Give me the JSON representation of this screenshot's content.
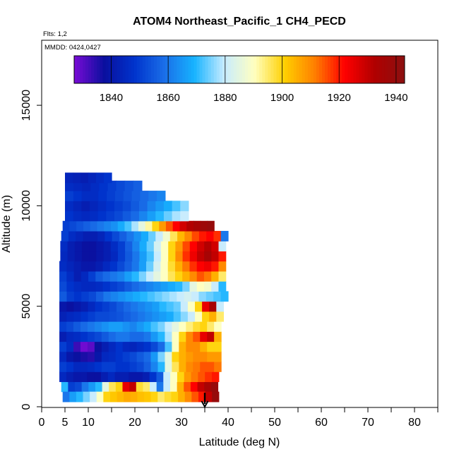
{
  "chart_data": {
    "type": "heatmap",
    "title": "ATOM4 Northeast_Pacific_1 CH4_PECD",
    "flights_label": "Flts: 1,2",
    "dates_label": "MMDD: 0424,0427",
    "xlabel": "Latitude (deg N)",
    "ylabel": "Altitude (m)",
    "xlim": [
      0,
      85
    ],
    "ylim": [
      0,
      17500
    ],
    "x_ticks": [
      0,
      5,
      10,
      20,
      30,
      40,
      50,
      60,
      70,
      80
    ],
    "x_minor_ticks": [
      15,
      25,
      35,
      45,
      55,
      65,
      75,
      85
    ],
    "y_ticks": [
      0,
      5000,
      10000,
      15000
    ],
    "colorbar": {
      "min": 1827,
      "max": 1943,
      "ticks": [
        1840,
        1860,
        1880,
        1900,
        1920,
        1940
      ],
      "colors": [
        "#7a0bd6",
        "#0a0f9e",
        "#0033cc",
        "#1a6ee8",
        "#17b3ff",
        "#c8ecff",
        "#ffffc0",
        "#ffd000",
        "#ff8000",
        "#ff0000",
        "#b00000",
        "#8b1010"
      ]
    },
    "marker": {
      "latitude": 35,
      "altitude_top": 700,
      "altitude_bottom": 0
    },
    "rows": [
      {
        "alt": 1000,
        "lat_start": 4.2,
        "lat_end": 37.8,
        "vals": [
          1870,
          1850,
          1852,
          1860,
          1865,
          1870,
          1885,
          1896,
          1900,
          1925,
          1930,
          1898,
          1895,
          1880,
          1860,
          1880,
          1890,
          1905,
          1915,
          1922,
          1930,
          1935,
          1940
        ]
      },
      {
        "alt": 500,
        "lat_start": 4.5,
        "lat_end": 38.0,
        "vals": [
          1860,
          1866,
          1870,
          1875,
          1880,
          1890,
          1900,
          1902,
          1904,
          1906,
          1905,
          1903,
          1902,
          1900,
          1895,
          1898,
          1900,
          1905,
          1910,
          1915,
          1920,
          1930,
          1940
        ]
      },
      {
        "alt": 1500,
        "lat_start": 3.8,
        "lat_end": 38.0,
        "vals": [
          1845,
          1842,
          1840,
          1840,
          1838,
          1838,
          1842,
          1845,
          1842,
          1842,
          1840,
          1840,
          1842,
          1848,
          1855,
          1880,
          1890,
          1900,
          1908,
          1912,
          1915,
          1918,
          1920
        ]
      },
      {
        "alt": 2000,
        "lat_start": 3.8,
        "lat_end": 38.5,
        "vals": [
          1850,
          1848,
          1845,
          1845,
          1846,
          1848,
          1850,
          1850,
          1848,
          1848,
          1850,
          1852,
          1856,
          1862,
          1870,
          1885,
          1896,
          1905,
          1910,
          1912,
          1915,
          1915,
          1912
        ]
      },
      {
        "alt": 2500,
        "lat_start": 3.8,
        "lat_end": 38.5,
        "vals": [
          1845,
          1840,
          1838,
          1836,
          1835,
          1840,
          1845,
          1846,
          1848,
          1850,
          1852,
          1855,
          1858,
          1865,
          1875,
          1885,
          1900,
          1905,
          1908,
          1910,
          1910,
          1908,
          1908
        ]
      },
      {
        "alt": 3000,
        "lat_start": 3.8,
        "lat_end": 38.5,
        "vals": [
          1850,
          1846,
          1833,
          1828,
          1830,
          1838,
          1842,
          1845,
          1848,
          1845,
          1844,
          1846,
          1848,
          1852,
          1858,
          1872,
          1890,
          1905,
          1910,
          1910,
          1905,
          1900,
          1900
        ]
      },
      {
        "alt": 3500,
        "lat_start": 3.8,
        "lat_end": 38.5,
        "vals": [
          1842,
          1845,
          1846,
          1848,
          1850,
          1852,
          1855,
          1858,
          1860,
          1860,
          1858,
          1858,
          1860,
          1865,
          1870,
          1878,
          1890,
          1900,
          1910,
          1915,
          1925,
          1930,
          1905
        ]
      },
      {
        "alt": 4000,
        "lat_start": 3.8,
        "lat_end": 38.5,
        "vals": [
          1850,
          1852,
          1855,
          1858,
          1860,
          1862,
          1864,
          1866,
          1866,
          1864,
          1862,
          1865,
          1868,
          1872,
          1875,
          1880,
          1885,
          1890,
          1894,
          1898,
          1900,
          1895,
          1890
        ]
      },
      {
        "alt": 4500,
        "lat_start": 3.8,
        "lat_end": 39.0,
        "vals": [
          1843,
          1845,
          1846,
          1848,
          1850,
          1852,
          1852,
          1853,
          1854,
          1856,
          1858,
          1860,
          1862,
          1864,
          1866,
          1868,
          1872,
          1876,
          1880,
          1890,
          1900,
          1905,
          1895
        ]
      },
      {
        "alt": 5000,
        "lat_start": 3.8,
        "lat_end": 39.0,
        "vals": [
          1840,
          1838,
          1840,
          1842,
          1845,
          1848,
          1850,
          1852,
          1855,
          1858,
          1860,
          1862,
          1864,
          1866,
          1870,
          1872,
          1874,
          1880,
          1890,
          1900,
          1925,
          1935,
          1880
        ]
      },
      {
        "alt": 5500,
        "lat_start": 3.8,
        "lat_end": 40.0,
        "vals": [
          1855,
          1850,
          1848,
          1850,
          1852,
          1856,
          1860,
          1862,
          1864,
          1866,
          1868,
          1870,
          1872,
          1874,
          1876,
          1878,
          1880,
          1882,
          1880,
          1876,
          1874,
          1872,
          1870
        ]
      },
      {
        "alt": 6000,
        "lat_start": 3.8,
        "lat_end": 39.5,
        "vals": [
          1852,
          1848,
          1846,
          1845,
          1845,
          1846,
          1848,
          1850,
          1852,
          1855,
          1858,
          1860,
          1862,
          1864,
          1866,
          1868,
          1870,
          1875,
          1885,
          1890,
          1888,
          1880,
          1870
        ]
      },
      {
        "alt": 6500,
        "lat_start": 3.8,
        "lat_end": 39.5,
        "vals": [
          1850,
          1846,
          1842,
          1845,
          1850,
          1855,
          1858,
          1860,
          1862,
          1866,
          1870,
          1875,
          1880,
          1885,
          1890,
          1896,
          1900,
          1905,
          1910,
          1915,
          1912,
          1905,
          1895
        ]
      },
      {
        "alt": 7000,
        "lat_start": 3.8,
        "lat_end": 39.5,
        "vals": [
          1846,
          1844,
          1842,
          1840,
          1840,
          1842,
          1845,
          1848,
          1852,
          1856,
          1860,
          1866,
          1874,
          1882,
          1890,
          1898,
          1905,
          1912,
          1918,
          1922,
          1924,
          1920,
          1910
        ]
      },
      {
        "alt": 7500,
        "lat_start": 4.0,
        "lat_end": 39.5,
        "vals": [
          1845,
          1842,
          1840,
          1838,
          1838,
          1840,
          1842,
          1845,
          1850,
          1855,
          1860,
          1866,
          1872,
          1880,
          1890,
          1900,
          1910,
          1918,
          1924,
          1930,
          1935,
          1930,
          1920
        ]
      },
      {
        "alt": 8000,
        "lat_start": 4.0,
        "lat_end": 39.5,
        "vals": [
          1846,
          1842,
          1840,
          1838,
          1838,
          1840,
          1842,
          1846,
          1850,
          1856,
          1862,
          1868,
          1874,
          1882,
          1890,
          1900,
          1908,
          1916,
          1922,
          1928,
          1932,
          1928,
          1880
        ]
      },
      {
        "alt": 8500,
        "lat_start": 4.2,
        "lat_end": 40.0,
        "vals": [
          1850,
          1846,
          1844,
          1842,
          1842,
          1844,
          1848,
          1852,
          1856,
          1860,
          1864,
          1868,
          1874,
          1880,
          1888,
          1896,
          1904,
          1910,
          1916,
          1920,
          1922,
          1918,
          1860
        ]
      },
      {
        "alt": 9000,
        "lat_start": 4.5,
        "lat_end": 37.0,
        "vals": [
          1850,
          1852,
          1854,
          1856,
          1858,
          1860,
          1862,
          1864,
          1868,
          1872,
          1878,
          1885,
          1892,
          1900,
          1908,
          1915,
          1922,
          1928,
          1932,
          1935,
          1938,
          1940
        ]
      },
      {
        "alt": 9500,
        "lat_start": 5.0,
        "lat_end": 31.5,
        "vals": [
          1848,
          1846,
          1845,
          1846,
          1848,
          1850,
          1852,
          1855,
          1858,
          1862,
          1866,
          1870,
          1874,
          1878,
          1880
        ]
      },
      {
        "alt": 10000,
        "lat_start": 5.0,
        "lat_end": 31.5,
        "vals": [
          1846,
          1844,
          1842,
          1844,
          1846,
          1848,
          1850,
          1852,
          1855,
          1858,
          1862,
          1865,
          1868,
          1872,
          1876
        ]
      },
      {
        "alt": 10500,
        "lat_start": 5.0,
        "lat_end": 26.5,
        "vals": [
          1850,
          1848,
          1846,
          1846,
          1848,
          1850,
          1852,
          1854,
          1856,
          1858,
          1860,
          1862
        ]
      },
      {
        "alt": 11000,
        "lat_start": 5.0,
        "lat_end": 21.5,
        "vals": [
          1846,
          1845,
          1844,
          1846,
          1848,
          1850,
          1852,
          1854,
          1856
        ]
      },
      {
        "alt": 11400,
        "lat_start": 5.0,
        "lat_end": 15.0,
        "vals": [
          1844,
          1843,
          1842,
          1844,
          1846,
          1848
        ]
      }
    ]
  }
}
